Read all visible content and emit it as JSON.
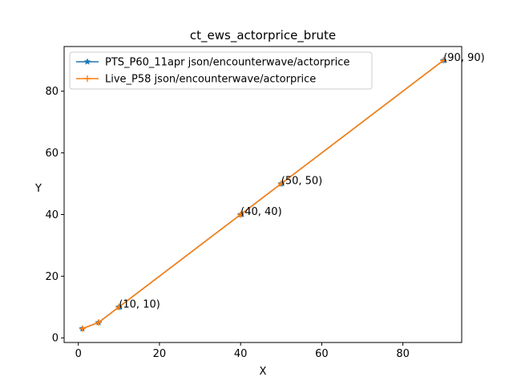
{
  "chart_data": {
    "type": "line",
    "title": "ct_ews_actorprice_brute",
    "xlabel": "X",
    "ylabel": "Y",
    "xlim": [
      -3.5,
      94.5
    ],
    "ylim": [
      -1.5,
      94.5
    ],
    "xticks": [
      0,
      20,
      40,
      60,
      80
    ],
    "yticks": [
      0,
      20,
      40,
      60,
      80
    ],
    "grid": false,
    "legend_position": "top-left",
    "series": [
      {
        "name": "PTS_P60_11apr json/encounterwave/actorprice",
        "color": "#1f77b4",
        "marker": "star",
        "x": [
          1,
          5,
          10,
          40,
          50,
          90
        ],
        "y": [
          3,
          5,
          10,
          40,
          50,
          90
        ]
      },
      {
        "name": "Live_P58 json/encounterwave/actorprice",
        "color": "#ff7f0e",
        "marker": "plus",
        "x": [
          1,
          5,
          10,
          40,
          50,
          90
        ],
        "y": [
          3,
          5,
          10,
          40,
          50,
          90
        ]
      }
    ],
    "annotations": [
      {
        "x": 10,
        "y": 10,
        "text": "(10, 10)"
      },
      {
        "x": 40,
        "y": 40,
        "text": "(40, 40)"
      },
      {
        "x": 50,
        "y": 50,
        "text": "(50, 50)"
      },
      {
        "x": 90,
        "y": 90,
        "text": "(90, 90)"
      }
    ]
  }
}
